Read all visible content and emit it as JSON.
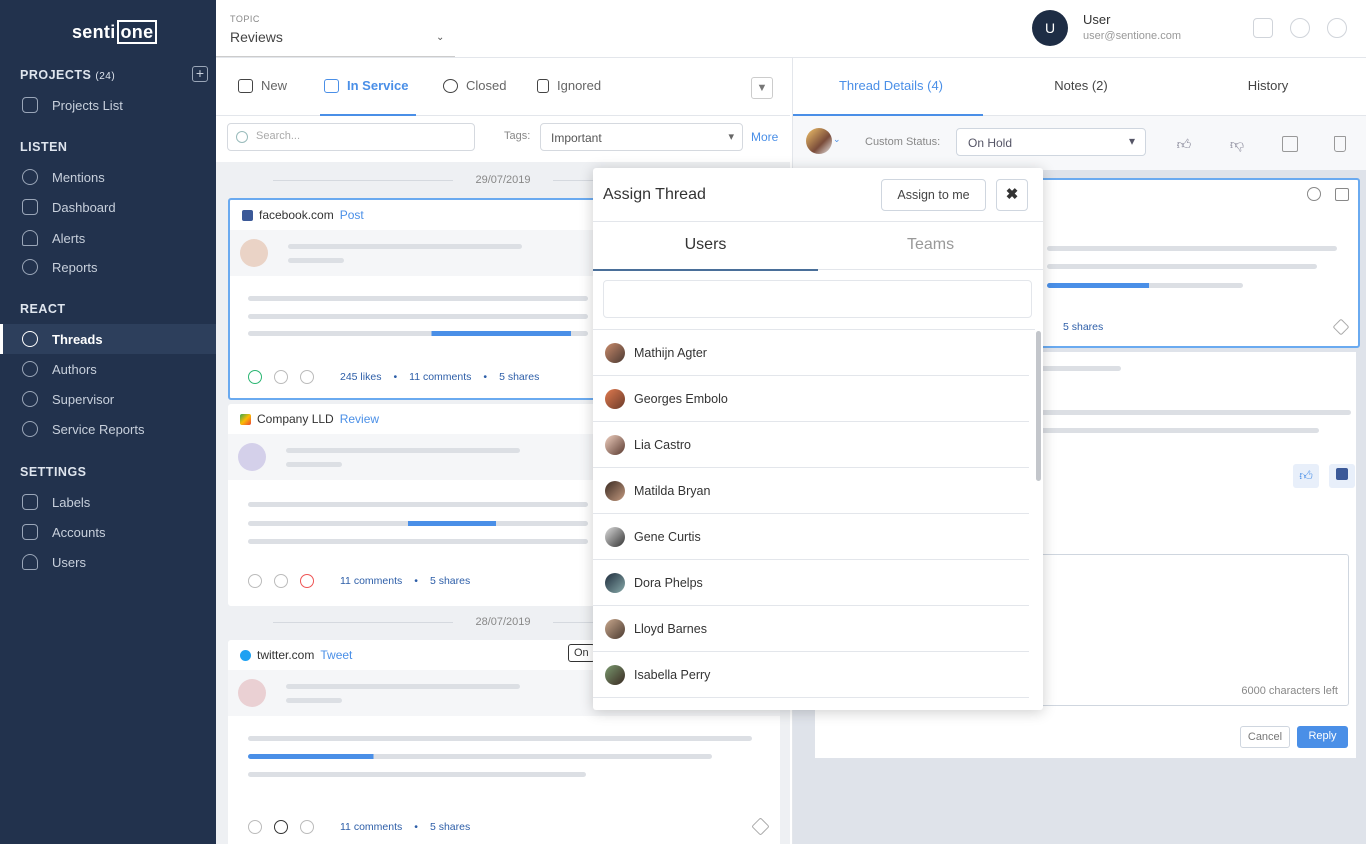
{
  "brand": {
    "logo_text_a": "senti",
    "logo_text_b": "one"
  },
  "sidebar": {
    "projects": {
      "label": "PROJECTS",
      "count": "(24)"
    },
    "sections": [
      {
        "label": "LISTEN"
      },
      {
        "label": "REACT"
      },
      {
        "label": "SETTINGS"
      }
    ],
    "items": [
      {
        "label": "Projects List",
        "icon": "projects-icon"
      },
      {
        "label": "Mentions",
        "icon": "mentions-icon"
      },
      {
        "label": "Dashboard",
        "icon": "dashboard-icon"
      },
      {
        "label": "Alerts",
        "icon": "bell-icon"
      },
      {
        "label": "Reports",
        "icon": "reports-icon"
      },
      {
        "label": "Threads",
        "icon": "threads-icon",
        "active": true
      },
      {
        "label": "Authors",
        "icon": "authors-icon"
      },
      {
        "label": "Supervisor",
        "icon": "supervisor-icon"
      },
      {
        "label": "Service Reports",
        "icon": "service-reports-icon"
      },
      {
        "label": "Labels",
        "icon": "labels-icon"
      },
      {
        "label": "Accounts",
        "icon": "accounts-icon"
      },
      {
        "label": "Users",
        "icon": "user-icon"
      }
    ]
  },
  "header": {
    "topic_label": "TOPIC",
    "topic_value": "Reviews",
    "user_initial": "U",
    "user_name": "User",
    "user_email": "user@sentione.com"
  },
  "threads": {
    "tabs": [
      {
        "label": "New"
      },
      {
        "label": "In Service",
        "active": true
      },
      {
        "label": "Closed"
      },
      {
        "label": "Ignored"
      }
    ],
    "search_placeholder": "Search...",
    "tags_label": "Tags:",
    "tags_value": "Important",
    "more": "More",
    "dates": [
      "29/07/2019",
      "28/07/2019"
    ],
    "cards": [
      {
        "source": "facebook.com",
        "type": "Post",
        "likes": "245 likes",
        "comments": "11 comments",
        "shares": "5 shares"
      },
      {
        "source": "Company LLD",
        "type": "Review",
        "comments": "11 comments",
        "shares": "5 shares"
      },
      {
        "source": "twitter.com",
        "type": "Tweet",
        "badge": "On",
        "comments": "11 comments",
        "shares": "5 shares"
      }
    ]
  },
  "details": {
    "tabs": [
      {
        "label": "Thread Details (4)",
        "active": true
      },
      {
        "label": "Notes (2)"
      },
      {
        "label": "History"
      }
    ],
    "custom_status_label": "Custom Status:",
    "custom_status_value": "On Hold",
    "shares": "5 shares",
    "chars_left": "6000 characters left",
    "cancel": "Cancel",
    "reply": "Reply"
  },
  "modal": {
    "title": "Assign Thread",
    "assign_to_me": "Assign to me",
    "tabs": [
      {
        "label": "Users",
        "active": true
      },
      {
        "label": "Teams"
      }
    ],
    "users": [
      "Mathijn Agter",
      "Georges Embolo",
      "Lia Castro",
      "Matilda Bryan",
      "Gene Curtis",
      "Dora Phelps",
      "Lloyd Barnes",
      "Isabella Perry"
    ]
  },
  "colors": {
    "sidebar": "#22324d",
    "accent": "#4a8fe7"
  }
}
